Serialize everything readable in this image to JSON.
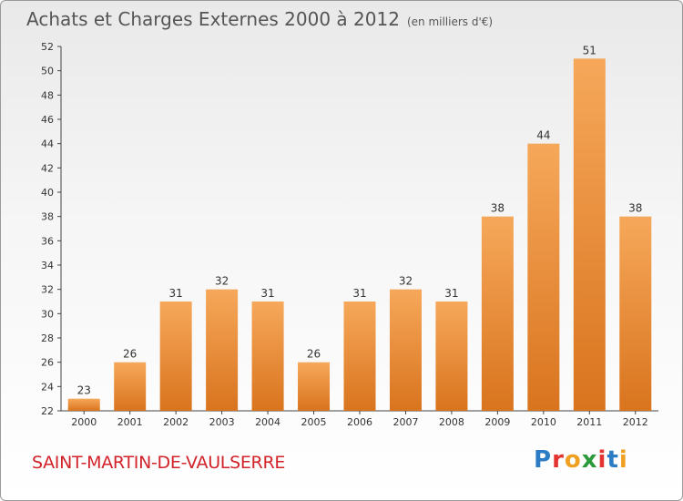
{
  "title": "Achats et Charges Externes 2000 à 2012",
  "subtitle": "(en milliers d'€)",
  "commune": "SAINT-MARTIN-DE-VAULSERRE",
  "logo": {
    "letters": [
      "P",
      "r",
      "o",
      "x",
      "i",
      "t",
      "i"
    ],
    "colors": [
      "#2b7cc4",
      "#e3342f",
      "#f0a020",
      "#2b9a3a",
      "#e3342f",
      "#2b7cc4",
      "#f0a020"
    ]
  },
  "colors": {
    "bar_light": "#f6a85a",
    "bar_dark": "#d9741e",
    "accent": "#d2232a"
  },
  "chart_data": {
    "type": "bar",
    "categories": [
      "2000",
      "2001",
      "2002",
      "2003",
      "2004",
      "2005",
      "2006",
      "2007",
      "2008",
      "2009",
      "2010",
      "2011",
      "2012"
    ],
    "values": [
      23,
      26,
      31,
      32,
      31,
      26,
      31,
      32,
      31,
      38,
      44,
      51,
      38
    ],
    "title": "Achats et Charges Externes 2000 à 2012",
    "xlabel": "",
    "ylabel": "",
    "ylim": [
      22,
      52
    ],
    "yticks": [
      22,
      24,
      26,
      28,
      30,
      32,
      34,
      36,
      38,
      40,
      42,
      44,
      46,
      48,
      50,
      52
    ],
    "grid": false,
    "legend": "none"
  }
}
